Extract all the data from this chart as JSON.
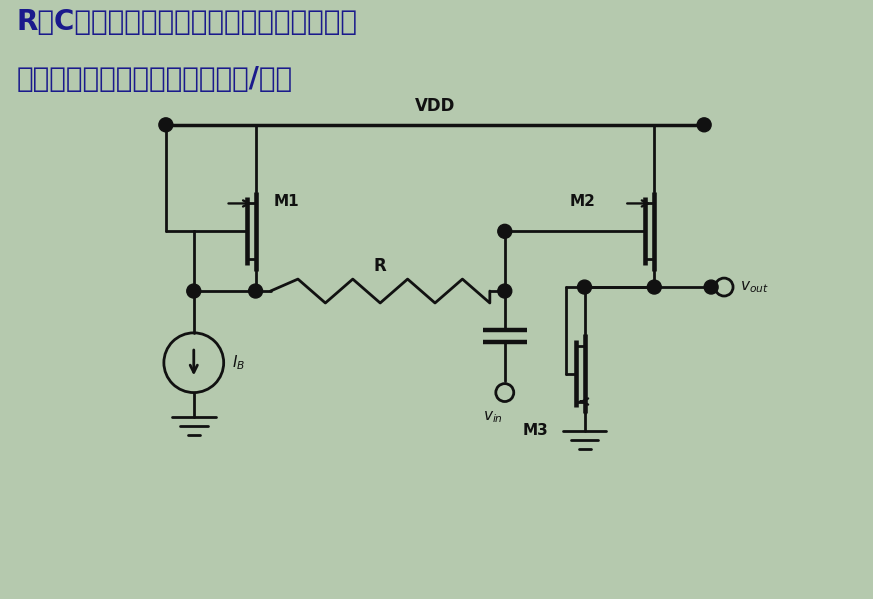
{
  "bg_color": "#b5c9ae",
  "line_color": "#111111",
  "text_color": "#1a1a8c",
  "title_line1": "R、C很大，计算输出支路电流、输出摇幅、",
  "title_line2": "小信号增益、低频输出阱抗和极/零点",
  "title_fontsize": 20,
  "vdd_label": "VDD",
  "m1_label": "M1",
  "m2_label": "M2",
  "m3_label": "M3",
  "r_label": "R",
  "ib_label": "I_B",
  "vin_label": "v_in",
  "vout_label": "V_out"
}
